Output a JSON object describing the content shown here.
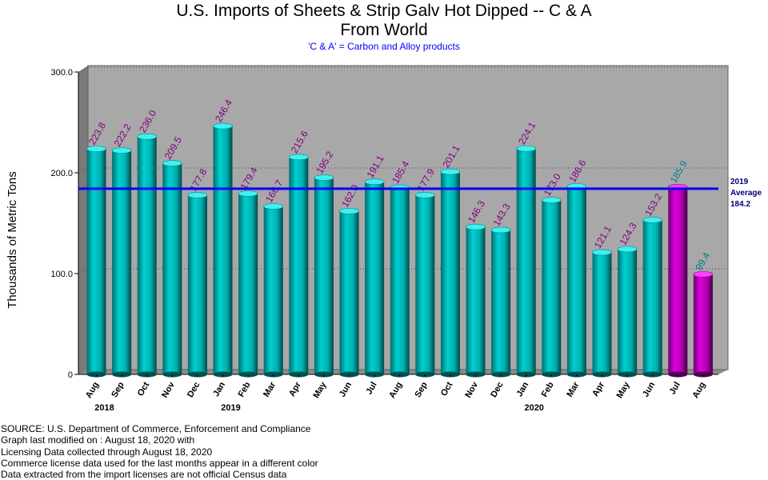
{
  "chart_data": {
    "type": "bar",
    "title_line1": "U.S. Imports of Sheets & Strip Galv Hot Dipped -- C & A",
    "title_line2": "From World",
    "subtitle": "'C & A' = Carbon and Alloy products",
    "ylabel": "Thousands of Metric Tons",
    "ylim": [
      0,
      300
    ],
    "yticks": [
      "0",
      "100.0",
      "200.0",
      "300.0"
    ],
    "ytick_values": [
      0,
      100,
      200,
      300
    ],
    "categories": [
      "Aug",
      "Sep",
      "Oct",
      "Nov",
      "Dec",
      "Jan",
      "Feb",
      "Mar",
      "Apr",
      "May",
      "Jun",
      "Jul",
      "Aug",
      "Sep",
      "Oct",
      "Nov",
      "Dec",
      "Jan",
      "Feb",
      "Mar",
      "Apr",
      "May",
      "Jun",
      "Jul",
      "Aug"
    ],
    "values": [
      223.8,
      222.2,
      236.0,
      209.5,
      177.8,
      246.4,
      179.4,
      166.7,
      215.6,
      195.2,
      162.0,
      191.1,
      185.4,
      177.9,
      201.1,
      146.3,
      143.3,
      224.1,
      173.0,
      186.6,
      121.1,
      124.3,
      153.2,
      185.9,
      99.4
    ],
    "value_labels": [
      "223.8",
      "222.2",
      "236.0",
      "209.5",
      "177.8",
      "246.4",
      "179.4",
      "166.7",
      "215.6",
      "195.2",
      "162.0",
      "191.1",
      "185.4",
      "177.9",
      "201.1",
      "146.3",
      "143.3",
      "224.1",
      "173.0",
      "186.6",
      "121.1",
      "124.3",
      "153.2",
      "185.9",
      "99.4"
    ],
    "license_data_from_index": 23,
    "year_labels": [
      {
        "text": "2018",
        "index": 0
      },
      {
        "text": "2019",
        "index": 5
      },
      {
        "text": "2020",
        "index": 17
      }
    ],
    "average": {
      "value": 184.2,
      "label_line1": "2019",
      "label_line2": "Average",
      "label_line3": "184.2"
    },
    "grid": "horizontal dotted",
    "colors": {
      "plot_bg": "#a8a8a8",
      "census_bar": "#00c4c4",
      "license_bar": "#c000c0",
      "census_label": "#800080",
      "license_label": "#008080",
      "average_line": "#0000ff"
    }
  },
  "footer": {
    "line1": "SOURCE: U.S. Department of Commerce, Enforcement and Compliance",
    "line2": "Graph last modified on : August 18, 2020    with",
    "line3": "Licensing Data collected through August 18, 2020",
    "line4": "Commerce license data used for the last months appear in a different color",
    "line5": "Data extracted from the import licenses are not official Census data"
  }
}
